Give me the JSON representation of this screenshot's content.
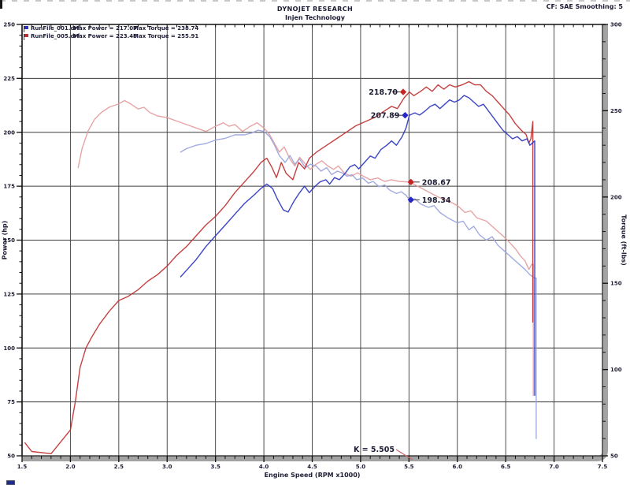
{
  "header": {
    "title": "DYNOJET RESEARCH",
    "subtitle": "Injen Technology",
    "correction_info": "CF: SAE  Smoothing: 5"
  },
  "legend": {
    "runs": [
      {
        "file": "RunFile_001.drf",
        "max_power": "Max Power = 217.07",
        "max_torque": "Max Torque = 238.74",
        "flag_color": "#2b35c0"
      },
      {
        "file": "RunFile_005.drf",
        "max_power": "Max Power = 223.46",
        "max_torque": "Max Torque = 255.91",
        "flag_color": "#c03030"
      }
    ]
  },
  "chart_data": {
    "type": "line",
    "title": "DYNOJET RESEARCH",
    "subtitle": "Injen Technology",
    "xlabel": "Engine Speed (RPM x1000)",
    "ylabel_left": "Power (hp)",
    "ylabel_right": "Torque (ft-lbs)",
    "x_range": [
      1.5,
      7.5
    ],
    "power_range": [
      50,
      250
    ],
    "torque_range": [
      50,
      300
    ],
    "x_minor_step": 0.1,
    "power_minor_step": 5,
    "torque_minor_step": 10,
    "grid": true,
    "legend_position": "top-left",
    "x_ticks": [
      {
        "v": 1.5,
        "label": "1.5"
      },
      {
        "v": 2.0,
        "label": "2.0"
      },
      {
        "v": 2.5,
        "label": "2.5"
      },
      {
        "v": 3.0,
        "label": "3.0"
      },
      {
        "v": 3.5,
        "label": "3.5"
      },
      {
        "v": 4.0,
        "label": "4.0"
      },
      {
        "v": 4.5,
        "label": "4.5"
      },
      {
        "v": 5.0,
        "label": "5.0"
      },
      {
        "v": 5.5,
        "label": "5.5"
      },
      {
        "v": 6.0,
        "label": "6.0"
      },
      {
        "v": 6.5,
        "label": "6.5"
      },
      {
        "v": 7.0,
        "label": "7.0"
      },
      {
        "v": 7.5,
        "label": "7.5"
      }
    ],
    "power_ticks": [
      {
        "v": 250,
        "label": "250"
      },
      {
        "v": 225,
        "label": "225"
      },
      {
        "v": 200,
        "label": "200"
      },
      {
        "v": 175,
        "label": "175"
      },
      {
        "v": 150,
        "label": "150"
      },
      {
        "v": 125,
        "label": "125"
      },
      {
        "v": 100,
        "label": "100"
      },
      {
        "v": 75,
        "label": "75"
      },
      {
        "v": 50,
        "label": "50"
      }
    ],
    "torque_ticks": [
      {
        "v": 300,
        "label": "300"
      },
      {
        "v": 250,
        "label": "250"
      },
      {
        "v": 200,
        "label": "200"
      },
      {
        "v": 150,
        "label": "150"
      },
      {
        "v": 100,
        "label": "100"
      },
      {
        "v": 50,
        "label": "50"
      }
    ],
    "series": [
      {
        "name": "RunFile_005.drf Torque",
        "axis": "torque",
        "color": "#e49c9c",
        "points": [
          [
            2.08,
            217
          ],
          [
            2.12,
            228
          ],
          [
            2.18,
            238
          ],
          [
            2.25,
            245
          ],
          [
            2.32,
            249
          ],
          [
            2.4,
            252
          ],
          [
            2.5,
            254
          ],
          [
            2.56,
            255.9
          ],
          [
            2.62,
            254
          ],
          [
            2.7,
            251
          ],
          [
            2.76,
            252
          ],
          [
            2.82,
            249
          ],
          [
            2.9,
            247
          ],
          [
            3.0,
            246
          ],
          [
            3.1,
            244
          ],
          [
            3.2,
            242
          ],
          [
            3.3,
            240
          ],
          [
            3.4,
            238
          ],
          [
            3.5,
            241
          ],
          [
            3.58,
            243
          ],
          [
            3.64,
            241
          ],
          [
            3.7,
            242
          ],
          [
            3.78,
            238
          ],
          [
            3.86,
            241
          ],
          [
            3.93,
            243
          ],
          [
            4.0,
            240
          ],
          [
            4.06,
            236
          ],
          [
            4.11,
            231
          ],
          [
            4.16,
            226
          ],
          [
            4.21,
            229
          ],
          [
            4.27,
            222
          ],
          [
            4.32,
            218
          ],
          [
            4.37,
            223
          ],
          [
            4.43,
            219
          ],
          [
            4.48,
            216
          ],
          [
            4.54,
            219
          ],
          [
            4.6,
            221
          ],
          [
            4.66,
            218
          ],
          [
            4.72,
            216
          ],
          [
            4.77,
            218
          ],
          [
            4.83,
            214
          ],
          [
            4.9,
            212
          ],
          [
            4.97,
            214
          ],
          [
            5.03,
            212
          ],
          [
            5.1,
            210
          ],
          [
            5.18,
            211
          ],
          [
            5.25,
            209
          ],
          [
            5.32,
            210
          ],
          [
            5.4,
            209
          ],
          [
            5.505,
            208.7
          ],
          [
            5.6,
            206
          ],
          [
            5.7,
            203
          ],
          [
            5.8,
            200
          ],
          [
            5.9,
            198
          ],
          [
            6.0,
            195
          ],
          [
            6.08,
            191
          ],
          [
            6.14,
            192
          ],
          [
            6.2,
            188
          ],
          [
            6.3,
            186
          ],
          [
            6.4,
            181
          ],
          [
            6.5,
            176
          ],
          [
            6.6,
            170
          ],
          [
            6.65,
            166
          ],
          [
            6.7,
            163
          ],
          [
            6.74,
            158
          ],
          [
            6.77,
            161
          ],
          [
            6.785,
            161
          ],
          [
            6.785,
            85
          ]
        ]
      },
      {
        "name": "RunFile_001.drf Torque",
        "axis": "torque",
        "color": "#9aa5e0",
        "points": [
          [
            3.14,
            226
          ],
          [
            3.2,
            228
          ],
          [
            3.3,
            230
          ],
          [
            3.4,
            231
          ],
          [
            3.5,
            233
          ],
          [
            3.6,
            234
          ],
          [
            3.7,
            236
          ],
          [
            3.8,
            236
          ],
          [
            3.87,
            237
          ],
          [
            3.94,
            238.7
          ],
          [
            4.0,
            238
          ],
          [
            4.06,
            235
          ],
          [
            4.11,
            230
          ],
          [
            4.16,
            224
          ],
          [
            4.22,
            220
          ],
          [
            4.27,
            224
          ],
          [
            4.32,
            219
          ],
          [
            4.37,
            222
          ],
          [
            4.43,
            217
          ],
          [
            4.48,
            219
          ],
          [
            4.54,
            218
          ],
          [
            4.59,
            215
          ],
          [
            4.65,
            217
          ],
          [
            4.7,
            213
          ],
          [
            4.76,
            215
          ],
          [
            4.81,
            214
          ],
          [
            4.86,
            212
          ],
          [
            4.91,
            213
          ],
          [
            4.96,
            210
          ],
          [
            5.02,
            211
          ],
          [
            5.08,
            208
          ],
          [
            5.13,
            209
          ],
          [
            5.19,
            206
          ],
          [
            5.25,
            207
          ],
          [
            5.3,
            204
          ],
          [
            5.37,
            202
          ],
          [
            5.42,
            203
          ],
          [
            5.47,
            201
          ],
          [
            5.505,
            198.3
          ],
          [
            5.56,
            199
          ],
          [
            5.62,
            196
          ],
          [
            5.7,
            194
          ],
          [
            5.76,
            195
          ],
          [
            5.82,
            191
          ],
          [
            5.9,
            188
          ],
          [
            6.0,
            185
          ],
          [
            6.06,
            186
          ],
          [
            6.12,
            181
          ],
          [
            6.17,
            183
          ],
          [
            6.23,
            178
          ],
          [
            6.3,
            175
          ],
          [
            6.36,
            177
          ],
          [
            6.42,
            172
          ],
          [
            6.5,
            168
          ],
          [
            6.6,
            163
          ],
          [
            6.7,
            158
          ],
          [
            6.75,
            155
          ],
          [
            6.8,
            153
          ],
          [
            6.815,
            153
          ],
          [
            6.815,
            60
          ]
        ]
      },
      {
        "name": "RunFile_005.drf Power",
        "axis": "power",
        "color": "#c03030",
        "points": [
          [
            1.53,
            56
          ],
          [
            1.6,
            52
          ],
          [
            1.8,
            51
          ],
          [
            2.0,
            62
          ],
          [
            2.05,
            75
          ],
          [
            2.1,
            91
          ],
          [
            2.16,
            100
          ],
          [
            2.22,
            105
          ],
          [
            2.3,
            111
          ],
          [
            2.4,
            117
          ],
          [
            2.5,
            122
          ],
          [
            2.6,
            124
          ],
          [
            2.7,
            127
          ],
          [
            2.8,
            131
          ],
          [
            2.9,
            134
          ],
          [
            3.0,
            138
          ],
          [
            3.1,
            143
          ],
          [
            3.2,
            147
          ],
          [
            3.3,
            152
          ],
          [
            3.4,
            157
          ],
          [
            3.5,
            161
          ],
          [
            3.6,
            166
          ],
          [
            3.7,
            172
          ],
          [
            3.8,
            177
          ],
          [
            3.9,
            182
          ],
          [
            3.97,
            186
          ],
          [
            4.03,
            188
          ],
          [
            4.08,
            184
          ],
          [
            4.13,
            179
          ],
          [
            4.18,
            186
          ],
          [
            4.23,
            181
          ],
          [
            4.3,
            178
          ],
          [
            4.36,
            186
          ],
          [
            4.42,
            183
          ],
          [
            4.47,
            188
          ],
          [
            4.55,
            191
          ],
          [
            4.65,
            194
          ],
          [
            4.75,
            197
          ],
          [
            4.85,
            200
          ],
          [
            4.95,
            203
          ],
          [
            5.05,
            205
          ],
          [
            5.15,
            207
          ],
          [
            5.25,
            210
          ],
          [
            5.32,
            212
          ],
          [
            5.38,
            211
          ],
          [
            5.45,
            216
          ],
          [
            5.505,
            218.7
          ],
          [
            5.55,
            217
          ],
          [
            5.62,
            219
          ],
          [
            5.68,
            221
          ],
          [
            5.74,
            219
          ],
          [
            5.8,
            222
          ],
          [
            5.86,
            220
          ],
          [
            5.92,
            222
          ],
          [
            5.98,
            221
          ],
          [
            6.05,
            222
          ],
          [
            6.12,
            223.5
          ],
          [
            6.18,
            222
          ],
          [
            6.24,
            222
          ],
          [
            6.3,
            219
          ],
          [
            6.36,
            217
          ],
          [
            6.42,
            214
          ],
          [
            6.48,
            211
          ],
          [
            6.54,
            208
          ],
          [
            6.6,
            204
          ],
          [
            6.66,
            201
          ],
          [
            6.71,
            199
          ],
          [
            6.74,
            195
          ],
          [
            6.76,
            197
          ],
          [
            6.78,
            205
          ],
          [
            6.78,
            112
          ]
        ]
      },
      {
        "name": "RunFile_001.drf Power",
        "axis": "power",
        "color": "#2b35c0",
        "points": [
          [
            3.14,
            133
          ],
          [
            3.2,
            136
          ],
          [
            3.3,
            141
          ],
          [
            3.4,
            147
          ],
          [
            3.5,
            152
          ],
          [
            3.6,
            157
          ],
          [
            3.7,
            162
          ],
          [
            3.8,
            167
          ],
          [
            3.9,
            171
          ],
          [
            3.97,
            174
          ],
          [
            4.03,
            176
          ],
          [
            4.09,
            174
          ],
          [
            4.14,
            169
          ],
          [
            4.2,
            164
          ],
          [
            4.25,
            163
          ],
          [
            4.31,
            168
          ],
          [
            4.37,
            172
          ],
          [
            4.42,
            175
          ],
          [
            4.47,
            172
          ],
          [
            4.53,
            175
          ],
          [
            4.58,
            177
          ],
          [
            4.64,
            178
          ],
          [
            4.68,
            176
          ],
          [
            4.73,
            179
          ],
          [
            4.78,
            178
          ],
          [
            4.84,
            181
          ],
          [
            4.89,
            184
          ],
          [
            4.94,
            185
          ],
          [
            4.98,
            183
          ],
          [
            5.04,
            186
          ],
          [
            5.1,
            189
          ],
          [
            5.15,
            188
          ],
          [
            5.21,
            192
          ],
          [
            5.27,
            194
          ],
          [
            5.32,
            196
          ],
          [
            5.37,
            194
          ],
          [
            5.43,
            198
          ],
          [
            5.47,
            202
          ],
          [
            5.505,
            207.9
          ],
          [
            5.56,
            209
          ],
          [
            5.61,
            208
          ],
          [
            5.67,
            210
          ],
          [
            5.72,
            212
          ],
          [
            5.77,
            213
          ],
          [
            5.82,
            211
          ],
          [
            5.87,
            213
          ],
          [
            5.92,
            215
          ],
          [
            5.97,
            214
          ],
          [
            6.02,
            215
          ],
          [
            6.07,
            217.1
          ],
          [
            6.12,
            216
          ],
          [
            6.17,
            214
          ],
          [
            6.22,
            212
          ],
          [
            6.27,
            213
          ],
          [
            6.32,
            210
          ],
          [
            6.37,
            207
          ],
          [
            6.42,
            204
          ],
          [
            6.47,
            201
          ],
          [
            6.52,
            199
          ],
          [
            6.57,
            197
          ],
          [
            6.62,
            198
          ],
          [
            6.67,
            196
          ],
          [
            6.72,
            197
          ],
          [
            6.75,
            194
          ],
          [
            6.8,
            196
          ],
          [
            6.8,
            78
          ]
        ]
      }
    ],
    "markers": [
      {
        "label": "218.70",
        "rpm": 5.44,
        "value": 218.7,
        "axis": "power",
        "color": "#c92222",
        "text_side": "left"
      },
      {
        "label": "207.89",
        "rpm": 5.46,
        "value": 207.89,
        "axis": "power",
        "color": "#2626c9",
        "text_side": "left"
      },
      {
        "label": "208.67",
        "rpm": 5.52,
        "value": 208.67,
        "axis": "torque",
        "color": "#c92222",
        "text_side": "right"
      },
      {
        "label": "198.34",
        "rpm": 5.52,
        "value": 198.34,
        "axis": "torque",
        "color": "#2626c9",
        "text_side": "right"
      }
    ],
    "cursor": {
      "label": "K = 5.505",
      "rpm": 5.505,
      "line_color": "#cc6a6a"
    }
  }
}
